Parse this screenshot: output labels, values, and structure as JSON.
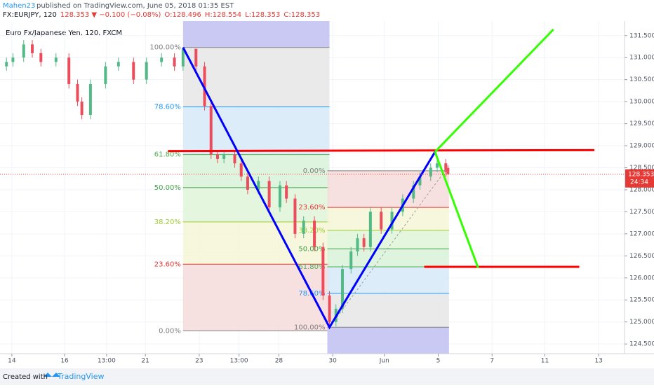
{
  "header": {
    "author": "Mahen23",
    "published": "published on TradingView.com, June 05, 2018 01:35 EST",
    "symbol_parts": [
      {
        "text": "FX:EURJPY, 120",
        "color": "#131722"
      },
      {
        "text": "128.353 ▼ −0.100 (−0.08%)",
        "color": "#e53935"
      },
      {
        "text": "O:128.496",
        "color": "#e53935"
      },
      {
        "text": "H:128.554",
        "color": "#e53935"
      },
      {
        "text": "L:128.353",
        "color": "#e53935"
      },
      {
        "text": "C:128.353",
        "color": "#e53935"
      }
    ]
  },
  "footer": {
    "created": "Created with",
    "brand": "TradingView"
  },
  "chart_data": {
    "type": "candlestick",
    "title": "Euro Fx/Japanese Yen, 120, FXCM",
    "up_color": "#53b987",
    "down_color": "#eb4d5c",
    "grid": true,
    "xlim": [
      0,
      290
    ],
    "ylim": [
      124.28,
      131.83
    ],
    "xticks": [
      {
        "value": 5.5,
        "label": "14"
      },
      {
        "value": 30,
        "label": "16"
      },
      {
        "value": 49.5,
        "label": "13:00"
      },
      {
        "value": 67.5,
        "label": "21"
      },
      {
        "value": 92.5,
        "label": "23"
      },
      {
        "value": 111,
        "label": "13:00"
      },
      {
        "value": 129.5,
        "label": "28"
      },
      {
        "value": 154.5,
        "label": "30"
      },
      {
        "value": 178.5,
        "label": "Jun"
      },
      {
        "value": 203.5,
        "label": "5"
      },
      {
        "value": 228.5,
        "label": "7"
      },
      {
        "value": 253,
        "label": "11"
      },
      {
        "value": 278,
        "label": "13"
      }
    ],
    "yticks": [
      {
        "value": 124.5,
        "label": "124.500"
      },
      {
        "value": 125,
        "label": "125.000"
      },
      {
        "value": 125.5,
        "label": "125.500"
      },
      {
        "value": 126,
        "label": "126.000"
      },
      {
        "value": 126.5,
        "label": "126.500"
      },
      {
        "value": 127,
        "label": "127.000"
      },
      {
        "value": 127.5,
        "label": "127.500"
      },
      {
        "value": 128,
        "label": "128.000"
      },
      {
        "value": 128.5,
        "label": "128.500"
      },
      {
        "value": 129,
        "label": "129.000"
      },
      {
        "value": 129.5,
        "label": "129.500"
      },
      {
        "value": 130,
        "label": "130.000"
      },
      {
        "value": 130.5,
        "label": "130.500"
      },
      {
        "value": 131,
        "label": "131.000"
      },
      {
        "value": 131.5,
        "label": "131.500"
      }
    ],
    "x": [
      3,
      6,
      11,
      15,
      19,
      26,
      32,
      36,
      38,
      42,
      49,
      55,
      62,
      68,
      75,
      81,
      85,
      91,
      95,
      98,
      101,
      104,
      109,
      112,
      115,
      120,
      125,
      130,
      133,
      137,
      141,
      146,
      150,
      153,
      156,
      159,
      163,
      166,
      169,
      172,
      177,
      182,
      187,
      192,
      195,
      200,
      203,
      207,
      208
    ],
    "open": [
      130.8,
      130.9,
      131.0,
      131.3,
      131.1,
      130.9,
      131.0,
      130.4,
      130.0,
      129.7,
      130.4,
      130.8,
      130.9,
      130.5,
      130.9,
      131.0,
      130.8,
      131.2,
      130.8,
      129.9,
      128.8,
      128.7,
      128.8,
      128.6,
      128.3,
      128.0,
      128.2,
      127.6,
      128.1,
      127.8,
      127.0,
      127.3,
      126.7,
      125.6,
      125.0,
      125.3,
      126.2,
      126.6,
      126.9,
      126.7,
      127.5,
      127.1,
      127.5,
      127.8,
      128.1,
      128.3,
      128.5,
      128.6,
      128.496
    ],
    "high": [
      131.0,
      131.1,
      131.4,
      131.4,
      131.2,
      131.1,
      131.1,
      130.5,
      130.1,
      130.5,
      130.9,
      131.0,
      131.0,
      131.0,
      131.1,
      131.1,
      131.23,
      131.2,
      130.9,
      130.0,
      128.9,
      128.9,
      128.9,
      128.7,
      128.4,
      128.3,
      128.3,
      128.2,
      128.2,
      127.9,
      127.4,
      127.4,
      126.8,
      125.7,
      125.4,
      126.3,
      126.7,
      127.0,
      127.0,
      127.6,
      127.6,
      127.6,
      127.9,
      128.2,
      128.4,
      128.6,
      128.7,
      128.7,
      128.554
    ],
    "low": [
      130.7,
      130.8,
      130.9,
      131.0,
      130.8,
      130.8,
      130.3,
      129.9,
      129.6,
      129.6,
      130.3,
      130.7,
      130.4,
      130.4,
      130.8,
      130.7,
      130.7,
      130.7,
      129.8,
      128.7,
      128.6,
      128.6,
      128.5,
      128.2,
      127.9,
      127.9,
      127.5,
      127.5,
      127.7,
      126.9,
      126.9,
      126.6,
      125.5,
      124.88,
      124.9,
      125.2,
      126.1,
      126.5,
      126.6,
      126.6,
      127.0,
      127.0,
      127.4,
      127.7,
      128.0,
      128.2,
      128.4,
      128.3,
      128.353
    ],
    "close": [
      130.9,
      131.0,
      131.3,
      131.1,
      130.9,
      131.0,
      130.4,
      130.0,
      129.7,
      130.4,
      130.8,
      130.9,
      130.5,
      130.9,
      131.0,
      130.8,
      131.2,
      130.8,
      129.9,
      128.8,
      128.7,
      128.8,
      128.6,
      128.3,
      128.0,
      128.2,
      127.6,
      128.1,
      127.8,
      127.0,
      127.3,
      126.7,
      125.6,
      125.0,
      125.3,
      126.2,
      126.6,
      126.9,
      126.7,
      127.5,
      127.1,
      127.5,
      127.8,
      128.1,
      128.3,
      128.5,
      128.6,
      128.4,
      128.353
    ],
    "price_tag": {
      "value": 128.353,
      "label": "128.353",
      "color": "#e53935"
    },
    "countdown": "24:34",
    "fibs": [
      {
        "x": [
          85,
          153
        ],
        "shade": "top",
        "shade_color": "#c9c9f3",
        "levels": [
          {
            "label": "100.00%",
            "value": 131.23,
            "color": "#808080",
            "fill": "#e6e6e6"
          },
          {
            "label": "78.60%",
            "value": 129.88,
            "color": "#2196f3",
            "fill": "#d6eaf8"
          },
          {
            "label": "61.80%",
            "value": 128.8,
            "color": "#4caf50",
            "fill": "#d8f2d8"
          },
          {
            "label": "50.00%",
            "value": 128.05,
            "color": "#43a047",
            "fill": "#e0f4d8"
          },
          {
            "label": "38.20%",
            "value": 127.27,
            "color": "#9ccc31",
            "fill": "#f4f6d6"
          },
          {
            "label": "23.60%",
            "value": 126.31,
            "color": "#e53935",
            "fill": "#f6dada"
          },
          {
            "label": "0.00%",
            "value": 124.8,
            "color": "#808080"
          }
        ]
      },
      {
        "x": [
          152,
          208.5
        ],
        "shade": "bottom",
        "shade_color": "#c9c9f3",
        "levels": [
          {
            "label": "0.00%",
            "value": 128.43,
            "color": "#808080",
            "fill": "#f6dada"
          },
          {
            "label": "23.60%",
            "value": 127.6,
            "color": "#e53935",
            "fill": "#f4f6d6"
          },
          {
            "label": "38.20%",
            "value": 127.08,
            "color": "#9ccc31",
            "fill": "#e0f4d8"
          },
          {
            "label": "50.00%",
            "value": 126.66,
            "color": "#43a047",
            "fill": "#d8f2d8"
          },
          {
            "label": "61.80%",
            "value": 126.25,
            "color": "#4caf50",
            "fill": "#d6eaf8"
          },
          {
            "label": "78.60%",
            "value": 125.65,
            "color": "#2196f3",
            "fill": "#e6e6e6"
          },
          {
            "label": "100.00%",
            "value": 124.88,
            "color": "#808080"
          }
        ]
      }
    ],
    "drawings": [
      {
        "color": "#9e9e9e",
        "width": 1,
        "dash": true,
        "points": [
          [
            153,
            124.88
          ],
          [
            207,
            128.45
          ]
        ]
      },
      {
        "color": "#ff0000",
        "width": 3,
        "points": [
          [
            78,
            128.88
          ],
          [
            276,
            128.9
          ]
        ]
      },
      {
        "color": "#ff0000",
        "width": 3,
        "points": [
          [
            197,
            126.25
          ],
          [
            269,
            126.25
          ]
        ]
      },
      {
        "color": "#0000ff",
        "width": 3,
        "points": [
          [
            85,
            131.23
          ],
          [
            153,
            124.88
          ],
          [
            202,
            128.86
          ]
        ]
      },
      {
        "color": "#33ff00",
        "width": 3,
        "points": [
          [
            202,
            128.86
          ],
          [
            257,
            131.64
          ]
        ]
      },
      {
        "color": "#33ff00",
        "width": 3,
        "points": [
          [
            202,
            128.86
          ],
          [
            222,
            126.23
          ]
        ]
      }
    ]
  }
}
